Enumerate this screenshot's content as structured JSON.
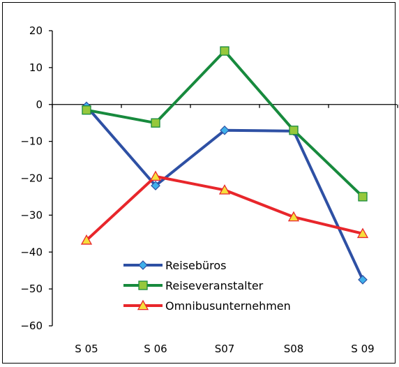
{
  "chart_data": {
    "type": "line",
    "categories": [
      "S 05",
      "S 06",
      "S07",
      "S08",
      "S 09"
    ],
    "ylim": [
      -60,
      20
    ],
    "yticks": [
      20,
      10,
      0,
      -10,
      -20,
      -30,
      -40,
      -50,
      -60
    ],
    "grid": false,
    "legend_position": "bottom-left",
    "series": [
      {
        "name": "Reisebüros",
        "color": "#2e50a4",
        "marker": "diamond",
        "marker_fill": "#3fb0ea",
        "values": [
          -0.5,
          -22.0,
          -7.0,
          -7.2,
          -47.5
        ]
      },
      {
        "name": "Reiseveranstalter",
        "color": "#178a3d",
        "marker": "square",
        "marker_fill": "#96c83c",
        "values": [
          -1.5,
          -5.0,
          14.5,
          -7.0,
          -25.0
        ]
      },
      {
        "name": "Omnibusunternehmen",
        "color": "#e8262b",
        "marker": "triangle",
        "marker_fill": "#f6df3c",
        "values": [
          -36.8,
          -19.5,
          -23.2,
          -30.5,
          -35.0
        ]
      }
    ]
  }
}
